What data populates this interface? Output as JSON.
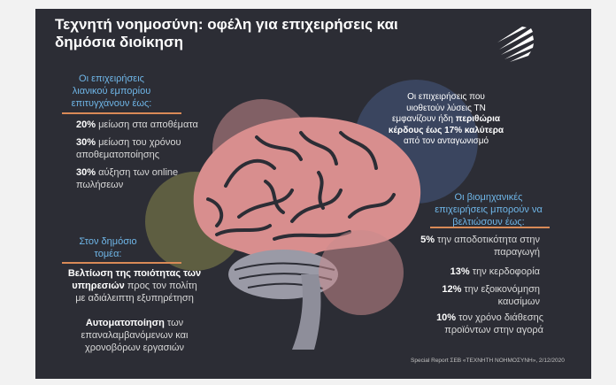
{
  "title": "Τεχνητή νοημοσύνη: οφέλη για επιχειρήσεις και δημόσια διοίκηση",
  "retail": {
    "header": "Οι επιχειρήσεις λιανικού εμπορίου επιτυγχάνουν έως:",
    "items": [
      {
        "value": "20%",
        "text": "μείωση στα αποθέματα"
      },
      {
        "value": "30%",
        "text": "μείωση του χρόνου αποθεματοποίησης"
      },
      {
        "value": "30%",
        "text": "αύξηση των online πωλήσεων"
      }
    ]
  },
  "public": {
    "header": "Στον δημόσιο τομέα:",
    "items": [
      {
        "bold": "Βελτίωση της ποιότητας των υπηρεσιών",
        "text": "προς τον πολίτη με αδιάλειπτη εξυπηρέτηση"
      },
      {
        "bold": "Αυτοματοποίηση",
        "text": "των επαναλαμβανόμενων και χρονοβόρων εργασιών"
      }
    ]
  },
  "bubble": {
    "text_before": "Οι επιχειρήσεις που υιοθετούν λύσεις ΤΝ εμφανίζουν ήδη",
    "bold": "περιθώρια κέρδους έως 17% καλύτερα",
    "text_after": "από τον ανταγωνισμό"
  },
  "industry": {
    "header": "Οι βιομηχανικές επιχειρήσεις μπορούν να βελτιώσουν έως:",
    "items": [
      {
        "value": "5%",
        "text": "την αποδοτικότητα στην παραγωγή"
      },
      {
        "value": "13%",
        "text": "την κερδοφορία"
      },
      {
        "value": "12%",
        "text": "την εξοικονόμηση καυσίμων"
      },
      {
        "value": "10%",
        "text": "τον χρόνο διάθεσης προϊόντων στην αγορά"
      }
    ]
  },
  "footer": "Special Report ΣΕΒ «ΤΕΧΝΗΤΗ ΝΟΗΜΟΣΥΝΗ», 2/12/2020",
  "colors": {
    "accent_blue": "#6fb6e8",
    "accent_orange": "#d98a57",
    "background": "#2c2d35",
    "brain_pink": "#e7a3a0"
  }
}
